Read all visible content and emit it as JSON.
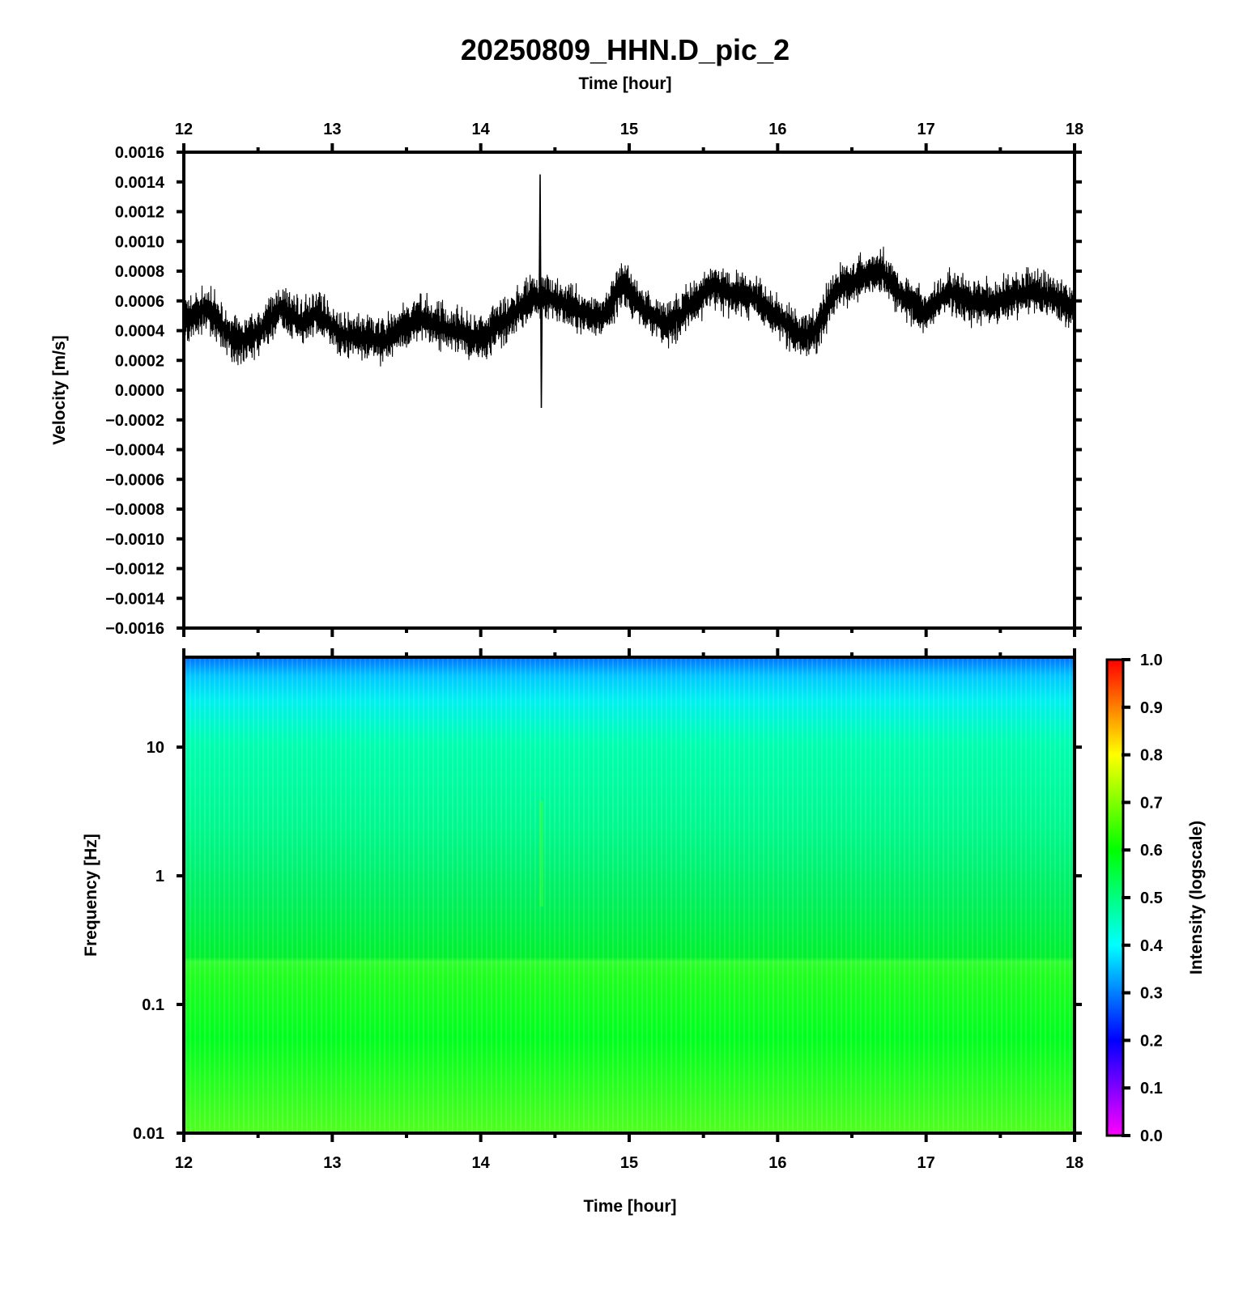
{
  "title": "20250809_HHN.D_pic_2",
  "chart_data": [
    {
      "type": "line",
      "top_xlabel": "Time [hour]",
      "ylabel": "Velocity [m/s]",
      "xlim": [
        12,
        18
      ],
      "ylim": [
        -0.0016,
        0.0016
      ],
      "x_ticks": [
        "12",
        "13",
        "14",
        "15",
        "16",
        "17",
        "18"
      ],
      "y_ticks": [
        "0.0016",
        "0.0014",
        "0.0012",
        "0.0010",
        "0.0008",
        "0.0006",
        "0.0004",
        "0.0002",
        "0.0000",
        "−0.0002",
        "−0.0004",
        "−0.0006",
        "−0.0008",
        "−0.0010",
        "−0.0012",
        "−0.0014",
        "−0.0016"
      ],
      "series": [
        {
          "color": "#000000",
          "x": [
            12.0,
            12.15,
            12.25,
            12.35,
            12.5,
            12.65,
            12.8,
            12.9,
            13.05,
            13.2,
            13.35,
            13.5,
            13.6,
            13.75,
            13.9,
            14.0,
            14.1,
            14.2,
            14.3,
            14.38,
            14.45,
            14.55,
            14.7,
            14.82,
            14.95,
            15.1,
            15.25,
            15.4,
            15.55,
            15.7,
            15.85,
            16.0,
            16.15,
            16.25,
            16.4,
            16.55,
            16.7,
            16.85,
            17.0,
            17.15,
            17.3,
            17.45,
            17.6,
            17.75,
            17.9,
            18.0
          ],
          "y": [
            0.00048,
            0.00055,
            0.00045,
            0.00032,
            0.00038,
            0.00055,
            0.00045,
            0.00052,
            0.00038,
            0.00035,
            0.00033,
            0.00045,
            0.00048,
            0.00042,
            0.00038,
            0.00034,
            0.00042,
            0.0005,
            0.00058,
            0.00062,
            0.00063,
            0.00058,
            0.00052,
            0.00048,
            0.00072,
            0.00055,
            0.00044,
            0.00055,
            0.0007,
            0.00065,
            0.00062,
            0.0005,
            0.00036,
            0.0004,
            0.00068,
            0.00075,
            0.0008,
            0.00062,
            0.00052,
            0.00066,
            0.0006,
            0.00058,
            0.00064,
            0.00066,
            0.0006,
            0.00056
          ],
          "spike": {
            "x": 14.4,
            "ymax": 0.00145,
            "ymin": -0.00012
          }
        }
      ]
    },
    {
      "type": "heatmap",
      "xlabel": "Time [hour]",
      "ylabel": "Frequency [Hz]",
      "xlim": [
        12,
        18
      ],
      "ylim": [
        0.01,
        50
      ],
      "y_scale": "log",
      "x_ticks": [
        "12",
        "13",
        "14",
        "15",
        "16",
        "17",
        "18"
      ],
      "y_ticks": [
        {
          "value": 10,
          "label": "10"
        },
        {
          "value": 1,
          "label": "1"
        },
        {
          "value": 0.1,
          "label": "0.1"
        },
        {
          "value": 0.01,
          "label": "0.01"
        }
      ],
      "colorbar": {
        "label": "Intensity (logscale)",
        "range": [
          0.0,
          1.0
        ],
        "ticks": [
          "1.0",
          "0.9",
          "0.8",
          "0.7",
          "0.6",
          "0.5",
          "0.4",
          "0.3",
          "0.2",
          "0.1",
          "0.0"
        ],
        "colormap": [
          "#ff00ff",
          "#8000ff",
          "#0000ff",
          "#0080ff",
          "#00ffff",
          "#00ff80",
          "#00ff00",
          "#80ff00",
          "#ffff00",
          "#ff8000",
          "#ff0000"
        ]
      },
      "intensity_profile": [
        {
          "freq": 50,
          "value": 0.35
        },
        {
          "freq": 30,
          "value": 0.4
        },
        {
          "freq": 15,
          "value": 0.45
        },
        {
          "freq": 5,
          "value": 0.5
        },
        {
          "freq": 1,
          "value": 0.56
        },
        {
          "freq": 0.2,
          "value": 0.62
        },
        {
          "freq": 0.05,
          "value": 0.61
        },
        {
          "freq": 0.01,
          "value": 0.63
        }
      ]
    }
  ]
}
